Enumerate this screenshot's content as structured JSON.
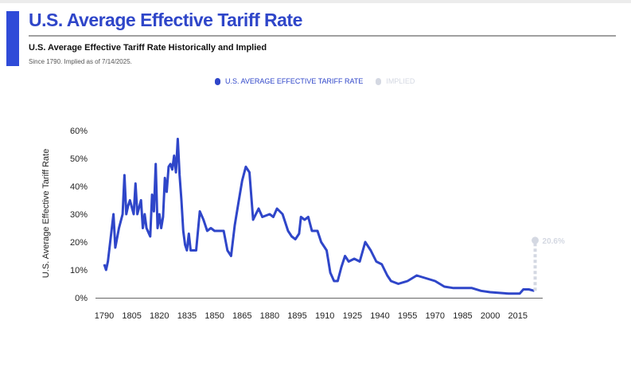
{
  "header": {
    "title": "U.S. Average Effective Tariff Rate",
    "subtitle": "U.S. Average Effective Tariff Rate Historically and Implied",
    "note": "Since 1790. Implied as of 7/14/2025."
  },
  "colors": {
    "accent": "#2f4bd8",
    "series": "#2f46c9",
    "implied": "#d4d8e2"
  },
  "chart_data": {
    "type": "line",
    "ylabel": "U.S. Average Effective Tariff Rate",
    "ylim": [
      0,
      60
    ],
    "xlim": [
      1790,
      2025
    ],
    "yticks": [
      "0%",
      "10%",
      "20%",
      "30%",
      "40%",
      "50%",
      "60%"
    ],
    "xticks": [
      "1790",
      "1805",
      "1820",
      "1835",
      "1850",
      "1865",
      "1880",
      "1895",
      "1910",
      "1925",
      "1940",
      "1955",
      "1970",
      "1985",
      "2000",
      "2015"
    ],
    "legend": "top",
    "grid": false,
    "series": [
      {
        "name": "U.S. AVERAGE EFFECTIVE TARIFF RATE",
        "x": [
          1790,
          1791,
          1792,
          1795,
          1796,
          1798,
          1800,
          1801,
          1802,
          1803,
          1804,
          1806,
          1807,
          1808,
          1810,
          1811,
          1812,
          1813,
          1815,
          1816,
          1817,
          1818,
          1819,
          1820,
          1821,
          1822,
          1823,
          1824,
          1825,
          1826,
          1827,
          1828,
          1829,
          1830,
          1831,
          1832,
          1833,
          1834,
          1835,
          1836,
          1837,
          1840,
          1842,
          1844,
          1846,
          1848,
          1850,
          1855,
          1857,
          1859,
          1861,
          1863,
          1865,
          1867,
          1869,
          1871,
          1874,
          1876,
          1880,
          1882,
          1884,
          1887,
          1890,
          1892,
          1894,
          1896,
          1897,
          1899,
          1901,
          1903,
          1906,
          1908,
          1911,
          1913,
          1915,
          1917,
          1919,
          1921,
          1923,
          1926,
          1929,
          1932,
          1935,
          1938,
          1941,
          1944,
          1946,
          1950,
          1955,
          1960,
          1965,
          1970,
          1975,
          1980,
          1990,
          1995,
          2000,
          2010,
          2016,
          2018,
          2021,
          2024
        ],
        "values": [
          12,
          10,
          13,
          30,
          18,
          25,
          30,
          44,
          30,
          33,
          35,
          30,
          41,
          30,
          35,
          25,
          30,
          25,
          22,
          37,
          31,
          48,
          25,
          30,
          25,
          29,
          43,
          38,
          47,
          48,
          46,
          51,
          45,
          57,
          44,
          35,
          24,
          19,
          17,
          23,
          17,
          17,
          31,
          28,
          24,
          25,
          24,
          24,
          17,
          15,
          26,
          34,
          42,
          47,
          45,
          28,
          32,
          29,
          30,
          29,
          32,
          30,
          24,
          22,
          21,
          23,
          29,
          28,
          29,
          24,
          24,
          20,
          17,
          9,
          6,
          6,
          11,
          15,
          13,
          14,
          13,
          20,
          17,
          13,
          12,
          8,
          6,
          5,
          6,
          8,
          7,
          6,
          4,
          3.5,
          3.5,
          2.5,
          2,
          1.5,
          1.5,
          3,
          3,
          2.5
        ]
      },
      {
        "name": "IMPLIED",
        "x": [
          2024,
          2025
        ],
        "values": [
          2.5,
          20.6
        ],
        "label": "20.6%"
      }
    ]
  }
}
